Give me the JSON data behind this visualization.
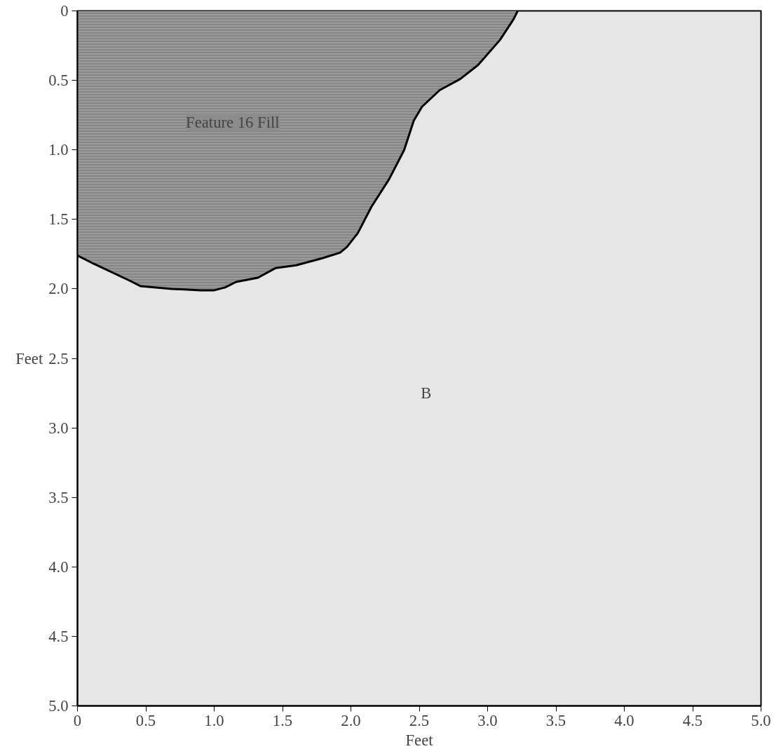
{
  "chart_data": {
    "type": "area",
    "xlabel": "Feet",
    "ylabel": "Feet",
    "x": [
      0,
      0.12,
      0.38,
      0.46,
      0.69,
      0.9,
      1.0,
      1.08,
      1.16,
      1.32,
      1.45,
      1.6,
      1.79,
      1.92,
      1.97,
      2.05,
      2.15,
      2.28,
      2.39,
      2.46,
      2.52,
      2.65,
      2.8,
      2.93,
      3.09,
      3.19,
      3.22
    ],
    "series": [
      {
        "color": "#9a9a9a",
        "values": [
          1.76,
          1.82,
          1.94,
          1.98,
          2.0,
          2.01,
          2.01,
          1.99,
          1.95,
          1.92,
          1.85,
          1.83,
          1.78,
          1.74,
          1.7,
          1.6,
          1.41,
          1.21,
          1.0,
          0.79,
          0.69,
          0.57,
          0.49,
          0.39,
          0.21,
          0.06,
          0
        ]
      }
    ],
    "xlim": [
      0,
      5
    ],
    "ylim": [
      5,
      0
    ],
    "xticks": [
      0,
      {
        "value": 0.5,
        "label": "0.5"
      },
      {
        "value": 1,
        "label": "1.0"
      },
      {
        "value": 1.5,
        "label": "1.5"
      },
      {
        "value": 2,
        "label": "2.0"
      },
      {
        "value": 2.5,
        "label": "2.5"
      },
      {
        "value": 3,
        "label": "3.0"
      },
      {
        "value": 3.5,
        "label": "3.5"
      },
      {
        "value": 4,
        "label": "4.0"
      },
      {
        "value": 4.5,
        "label": "4.5"
      },
      {
        "value": 5,
        "label": "5.0"
      }
    ],
    "yticks": [
      0,
      {
        "value": 0.5,
        "label": "0.5"
      },
      {
        "value": 1,
        "label": "1.0"
      },
      {
        "value": 1.5,
        "label": "1.5"
      },
      {
        "value": 2,
        "label": "2.0"
      },
      {
        "value": 2.5,
        "label": "2.5"
      },
      {
        "value": 3,
        "label": "3.0"
      },
      {
        "value": 3.5,
        "label": "3.5"
      },
      {
        "value": 4,
        "label": "4.0"
      },
      {
        "value": 4.5,
        "label": "4.5"
      },
      {
        "value": 5,
        "label": "5.0"
      }
    ],
    "annotations": [
      "Feature 16 Fill",
      "B"
    ],
    "grid": false
  }
}
